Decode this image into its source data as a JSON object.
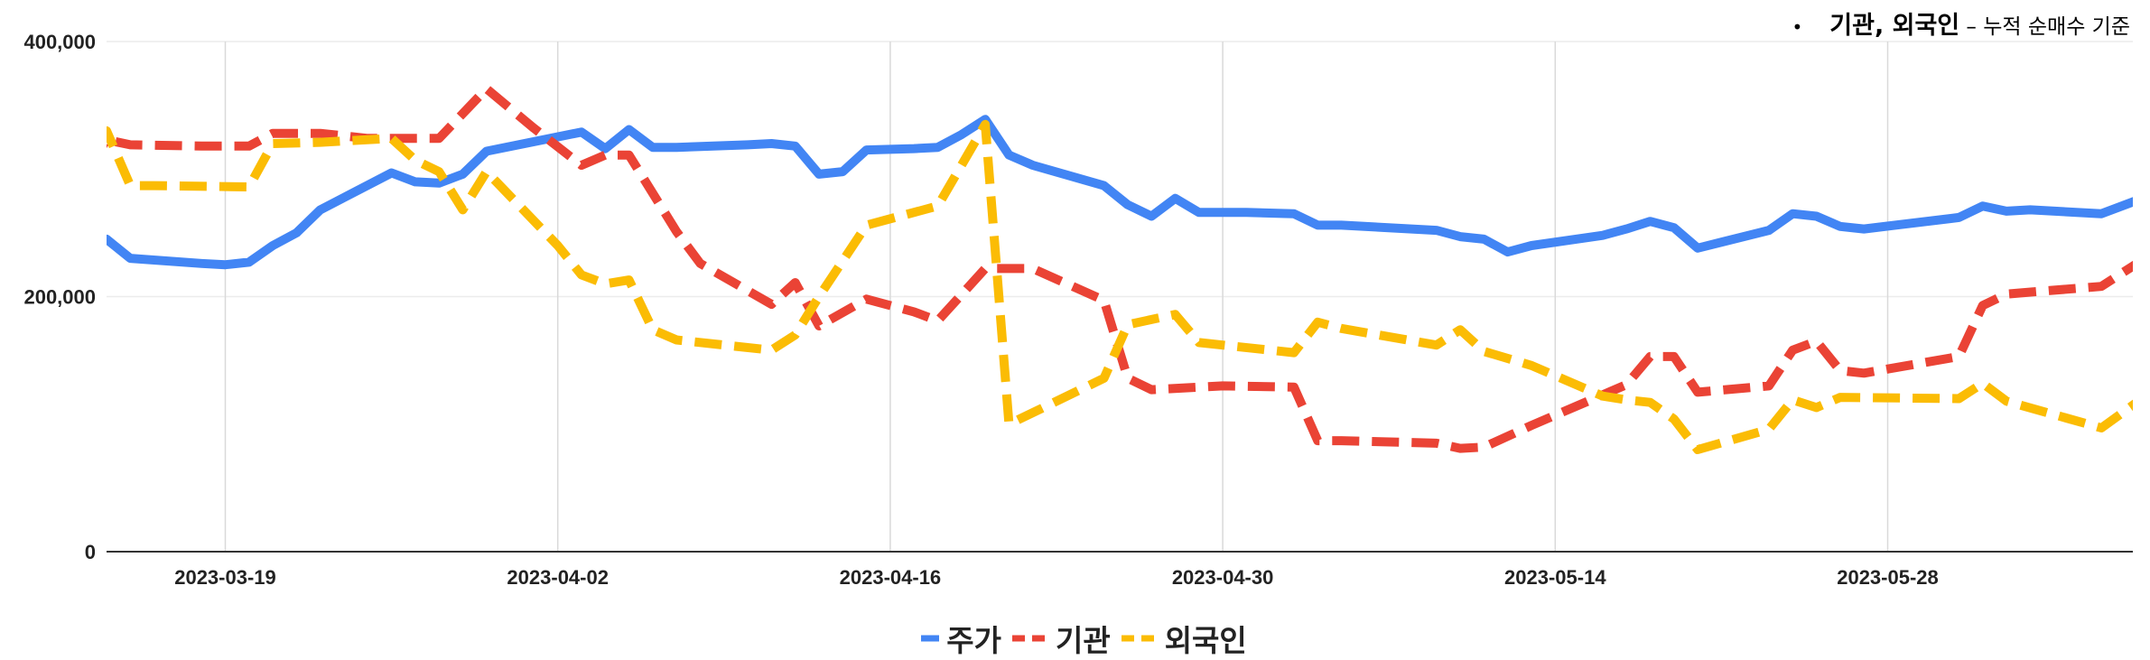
{
  "note": {
    "bullet": "•",
    "bold_text": "기관, 외국인",
    "small_text": " – 누적 순매수 기준"
  },
  "chart_data": {
    "type": "line",
    "title": "",
    "xlabel": "",
    "ylabel": "",
    "ylim": [
      0,
      400000
    ],
    "xlim": [
      "2023-03-12",
      "2023-06-06"
    ],
    "y_ticks": [
      0,
      200000,
      400000
    ],
    "y_tick_labels": [
      "0",
      "200,000",
      "400,000"
    ],
    "x_ticks": [
      "2023-03-19",
      "2023-04-02",
      "2023-04-16",
      "2023-04-30",
      "2023-05-14",
      "2023-05-28"
    ],
    "x_tick_labels": [
      "2023-03-19",
      "2023-04-02",
      "2023-04-16",
      "2023-04-30",
      "2023-05-14",
      "2023-05-28"
    ],
    "grid": true,
    "legend_position": "bottom",
    "series": [
      {
        "name": "주가",
        "color": "#4285f4",
        "style": "solid",
        "points": [
          [
            "2023-03-12",
            228000
          ],
          [
            "2023-03-13",
            232000
          ],
          [
            "2023-03-14",
            245000
          ],
          [
            "2023-03-15",
            230000
          ],
          [
            "2023-03-18",
            226000
          ],
          [
            "2023-03-19",
            225000
          ],
          [
            "2023-03-20",
            227000
          ],
          [
            "2023-03-21",
            240000
          ],
          [
            "2023-03-22",
            250000
          ],
          [
            "2023-03-23",
            268000
          ],
          [
            "2023-03-26",
            297000
          ],
          [
            "2023-03-27",
            290000
          ],
          [
            "2023-03-28",
            289000
          ],
          [
            "2023-03-29",
            296000
          ],
          [
            "2023-03-30",
            314000
          ],
          [
            "2023-04-03",
            329000
          ],
          [
            "2023-04-04",
            316000
          ],
          [
            "2023-04-05",
            331000
          ],
          [
            "2023-04-06",
            317000
          ],
          [
            "2023-04-07",
            317000
          ],
          [
            "2023-04-10",
            319000
          ],
          [
            "2023-04-11",
            320000
          ],
          [
            "2023-04-12",
            318000
          ],
          [
            "2023-04-13",
            296000
          ],
          [
            "2023-04-14",
            298000
          ],
          [
            "2023-04-15",
            315000
          ],
          [
            "2023-04-17",
            316000
          ],
          [
            "2023-04-18",
            317000
          ],
          [
            "2023-04-19",
            327000
          ],
          [
            "2023-04-20",
            339000
          ],
          [
            "2023-04-21",
            311000
          ],
          [
            "2023-04-22",
            303000
          ],
          [
            "2023-04-25",
            287000
          ],
          [
            "2023-04-26",
            272000
          ],
          [
            "2023-04-27",
            263000
          ],
          [
            "2023-04-28",
            277000
          ],
          [
            "2023-04-29",
            266000
          ],
          [
            "2023-05-01",
            266000
          ],
          [
            "2023-05-03",
            265000
          ],
          [
            "2023-05-04",
            256000
          ],
          [
            "2023-05-05",
            256000
          ],
          [
            "2023-05-09",
            252000
          ],
          [
            "2023-05-10",
            247000
          ],
          [
            "2023-05-11",
            245000
          ],
          [
            "2023-05-12",
            235000
          ],
          [
            "2023-05-13",
            240000
          ],
          [
            "2023-05-16",
            248000
          ],
          [
            "2023-05-17",
            253000
          ],
          [
            "2023-05-18",
            259000
          ],
          [
            "2023-05-19",
            254000
          ],
          [
            "2023-05-20",
            238000
          ],
          [
            "2023-05-23",
            252000
          ],
          [
            "2023-05-24",
            265000
          ],
          [
            "2023-05-25",
            263000
          ],
          [
            "2023-05-26",
            255000
          ],
          [
            "2023-05-27",
            253000
          ],
          [
            "2023-05-31",
            262000
          ],
          [
            "2023-06-01",
            271000
          ],
          [
            "2023-06-02",
            267000
          ],
          [
            "2023-06-03",
            268000
          ],
          [
            "2023-06-06",
            265000
          ],
          [
            "2023-06-08",
            279000
          ]
        ]
      },
      {
        "name": "기관",
        "color": "#ea4335",
        "style": "dashed",
        "points": [
          [
            "2023-03-12",
            285000
          ],
          [
            "2023-03-13",
            294000
          ],
          [
            "2023-03-14",
            323000
          ],
          [
            "2023-03-15",
            319000
          ],
          [
            "2023-03-18",
            318000
          ],
          [
            "2023-03-20",
            318000
          ],
          [
            "2023-03-21",
            328000
          ],
          [
            "2023-03-23",
            328000
          ],
          [
            "2023-03-25",
            324000
          ],
          [
            "2023-03-28",
            324000
          ],
          [
            "2023-03-30",
            363000
          ],
          [
            "2023-04-01",
            332000
          ],
          [
            "2023-04-03",
            303000
          ],
          [
            "2023-04-04",
            311000
          ],
          [
            "2023-04-05",
            311000
          ],
          [
            "2023-04-07",
            251000
          ],
          [
            "2023-04-08",
            226000
          ],
          [
            "2023-04-11",
            194000
          ],
          [
            "2023-04-12",
            211000
          ],
          [
            "2023-04-13",
            177000
          ],
          [
            "2023-04-15",
            198000
          ],
          [
            "2023-04-17",
            188000
          ],
          [
            "2023-04-18",
            181000
          ],
          [
            "2023-04-20",
            222000
          ],
          [
            "2023-04-22",
            222000
          ],
          [
            "2023-04-25",
            197000
          ],
          [
            "2023-04-26",
            136000
          ],
          [
            "2023-04-27",
            127000
          ],
          [
            "2023-04-30",
            130000
          ],
          [
            "2023-05-03",
            129000
          ],
          [
            "2023-05-04",
            87000
          ],
          [
            "2023-05-05",
            87000
          ],
          [
            "2023-05-09",
            85000
          ],
          [
            "2023-05-10",
            81000
          ],
          [
            "2023-05-11",
            82000
          ],
          [
            "2023-05-13",
            99000
          ],
          [
            "2023-05-17",
            131000
          ],
          [
            "2023-05-18",
            153000
          ],
          [
            "2023-05-19",
            153000
          ],
          [
            "2023-05-20",
            125000
          ],
          [
            "2023-05-23",
            130000
          ],
          [
            "2023-05-24",
            158000
          ],
          [
            "2023-05-25",
            165000
          ],
          [
            "2023-05-26",
            142000
          ],
          [
            "2023-05-27",
            140000
          ],
          [
            "2023-05-31",
            153000
          ],
          [
            "2023-06-01",
            193000
          ],
          [
            "2023-06-02",
            202000
          ],
          [
            "2023-06-06",
            208000
          ],
          [
            "2023-06-08",
            232000
          ]
        ]
      },
      {
        "name": "외국인",
        "color": "#fbbc04",
        "style": "dashed",
        "points": [
          [
            "2023-03-12",
            318000
          ],
          [
            "2023-03-14",
            330000
          ],
          [
            "2023-03-15",
            287000
          ],
          [
            "2023-03-16",
            287000
          ],
          [
            "2023-03-20",
            286000
          ],
          [
            "2023-03-21",
            320000
          ],
          [
            "2023-03-23",
            321000
          ],
          [
            "2023-03-26",
            324000
          ],
          [
            "2023-03-27",
            307000
          ],
          [
            "2023-03-28",
            298000
          ],
          [
            "2023-03-29",
            268000
          ],
          [
            "2023-03-30",
            298000
          ],
          [
            "2023-04-02",
            240000
          ],
          [
            "2023-04-03",
            217000
          ],
          [
            "2023-04-04",
            210000
          ],
          [
            "2023-04-05",
            213000
          ],
          [
            "2023-04-06",
            174000
          ],
          [
            "2023-04-07",
            166000
          ],
          [
            "2023-04-11",
            158000
          ],
          [
            "2023-04-12",
            170000
          ],
          [
            "2023-04-13",
            200000
          ],
          [
            "2023-04-15",
            256000
          ],
          [
            "2023-04-18",
            271000
          ],
          [
            "2023-04-20",
            335000
          ],
          [
            "2023-04-21",
            100000
          ],
          [
            "2023-04-25",
            136000
          ],
          [
            "2023-04-26",
            178000
          ],
          [
            "2023-04-27",
            182000
          ],
          [
            "2023-04-28",
            186000
          ],
          [
            "2023-04-29",
            164000
          ],
          [
            "2023-05-03",
            156000
          ],
          [
            "2023-05-04",
            180000
          ],
          [
            "2023-05-05",
            175000
          ],
          [
            "2023-05-09",
            162000
          ],
          [
            "2023-05-10",
            174000
          ],
          [
            "2023-05-11",
            157000
          ],
          [
            "2023-05-13",
            146000
          ],
          [
            "2023-05-16",
            122000
          ],
          [
            "2023-05-17",
            119000
          ],
          [
            "2023-05-18",
            117000
          ],
          [
            "2023-05-19",
            104000
          ],
          [
            "2023-05-20",
            80000
          ],
          [
            "2023-05-23",
            96000
          ],
          [
            "2023-05-24",
            119000
          ],
          [
            "2023-05-25",
            113000
          ],
          [
            "2023-05-26",
            121000
          ],
          [
            "2023-05-31",
            120000
          ],
          [
            "2023-06-01",
            132000
          ],
          [
            "2023-06-02",
            118000
          ],
          [
            "2023-06-06",
            97000
          ],
          [
            "2023-06-08",
            124000
          ]
        ]
      }
    ]
  }
}
